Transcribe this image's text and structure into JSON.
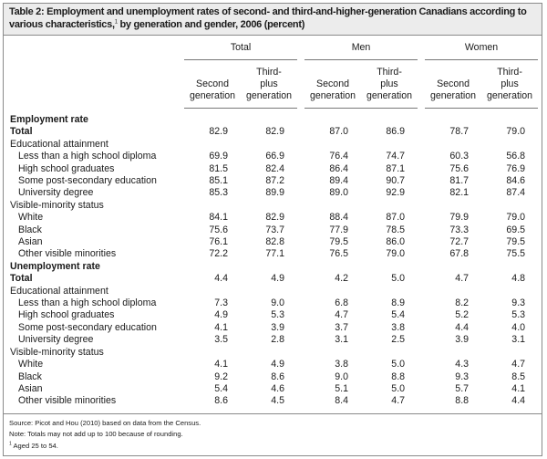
{
  "title": {
    "bold": "Table 2: Employment and unemployment rates of second- and third-and-higher-generation Canadians according to various characteristics,",
    "footnote_mark": "1",
    "rest": " by generation and gender, 2006 (percent)"
  },
  "column_groups": [
    "Total",
    "Men",
    "Women"
  ],
  "columns": [
    {
      "l1": "",
      "l2": "Second",
      "l3": "generation"
    },
    {
      "l1": "Third-",
      "l2": "plus",
      "l3": "generation"
    },
    {
      "l1": "",
      "l2": "Second",
      "l3": "generation"
    },
    {
      "l1": "Third-",
      "l2": "plus",
      "l3": "generation"
    },
    {
      "l1": "",
      "l2": "Second",
      "l3": "generation"
    },
    {
      "l1": "Third-",
      "l2": "plus",
      "l3": "generation"
    }
  ],
  "rows": [
    {
      "type": "section",
      "label": "Employment rate",
      "values": []
    },
    {
      "type": "total",
      "label": "Total",
      "values": [
        "82.9",
        "82.9",
        "87.0",
        "86.9",
        "78.7",
        "79.0"
      ]
    },
    {
      "type": "group",
      "label": "Educational attainment",
      "values": []
    },
    {
      "type": "item",
      "label": "Less than a high school diploma",
      "values": [
        "69.9",
        "66.9",
        "76.4",
        "74.7",
        "60.3",
        "56.8"
      ]
    },
    {
      "type": "item",
      "label": "High school graduates",
      "values": [
        "81.5",
        "82.4",
        "86.4",
        "87.1",
        "75.6",
        "76.9"
      ]
    },
    {
      "type": "item",
      "label": "Some post-secondary education",
      "values": [
        "85.1",
        "87.2",
        "89.4",
        "90.7",
        "81.7",
        "84.6"
      ]
    },
    {
      "type": "item",
      "label": "University degree",
      "values": [
        "85.3",
        "89.9",
        "89.0",
        "92.9",
        "82.1",
        "87.4"
      ]
    },
    {
      "type": "group",
      "label": "Visible-minority status",
      "values": []
    },
    {
      "type": "item",
      "label": "White",
      "values": [
        "84.1",
        "82.9",
        "88.4",
        "87.0",
        "79.9",
        "79.0"
      ]
    },
    {
      "type": "item",
      "label": "Black",
      "values": [
        "75.6",
        "73.7",
        "77.9",
        "78.5",
        "73.3",
        "69.5"
      ]
    },
    {
      "type": "item",
      "label": "Asian",
      "values": [
        "76.1",
        "82.8",
        "79.5",
        "86.0",
        "72.7",
        "79.5"
      ]
    },
    {
      "type": "item",
      "label": "Other visible minorities",
      "values": [
        "72.2",
        "77.1",
        "76.5",
        "79.0",
        "67.8",
        "75.5"
      ]
    },
    {
      "type": "section",
      "label": "Unemployment rate",
      "values": []
    },
    {
      "type": "total",
      "label": "Total",
      "values": [
        "4.4",
        "4.9",
        "4.2",
        "5.0",
        "4.7",
        "4.8"
      ]
    },
    {
      "type": "group",
      "label": "Educational attainment",
      "values": []
    },
    {
      "type": "item",
      "label": "Less than a high school diploma",
      "values": [
        "7.3",
        "9.0",
        "6.8",
        "8.9",
        "8.2",
        "9.3"
      ]
    },
    {
      "type": "item",
      "label": "High school graduates",
      "values": [
        "4.9",
        "5.3",
        "4.7",
        "5.4",
        "5.2",
        "5.3"
      ]
    },
    {
      "type": "item",
      "label": "Some post-secondary education",
      "values": [
        "4.1",
        "3.9",
        "3.7",
        "3.8",
        "4.4",
        "4.0"
      ]
    },
    {
      "type": "item",
      "label": "University degree",
      "values": [
        "3.5",
        "2.8",
        "3.1",
        "2.5",
        "3.9",
        "3.1"
      ]
    },
    {
      "type": "group",
      "label": "Visible-minority status",
      "values": []
    },
    {
      "type": "item",
      "label": "White",
      "values": [
        "4.1",
        "4.9",
        "3.8",
        "5.0",
        "4.3",
        "4.7"
      ]
    },
    {
      "type": "item",
      "label": "Black",
      "values": [
        "9.2",
        "8.6",
        "9.0",
        "8.8",
        "9.3",
        "8.5"
      ]
    },
    {
      "type": "item",
      "label": "Asian",
      "values": [
        "5.4",
        "4.6",
        "5.1",
        "5.0",
        "5.7",
        "4.1"
      ]
    },
    {
      "type": "item",
      "label": "Other visible minorities",
      "values": [
        "8.6",
        "4.5",
        "8.4",
        "4.7",
        "8.8",
        "4.4"
      ]
    }
  ],
  "footer": {
    "source": "Source: Picot and Hou (2010) based on data from the Census.",
    "note": "Note: Totals may not add up to 100 because of rounding.",
    "footnote_mark": "1",
    "footnote": " Aged 25 to 54."
  }
}
